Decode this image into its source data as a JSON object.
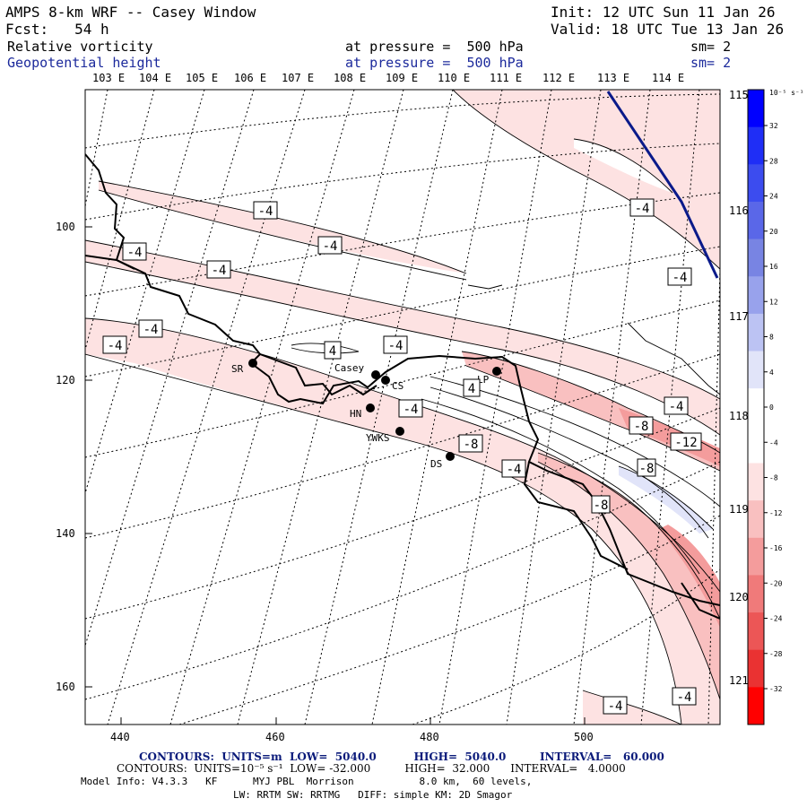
{
  "header": {
    "model": "AMPS 8-km WRF -- Casey Window",
    "init": "Init: 12 UTC Sun 11 Jan 26",
    "fcst": "Fcst:   54 h",
    "valid": "Valid: 18 UTC Tue 13 Jan 26",
    "field1": "Relative vorticity",
    "field1_level": "at pressure =  500 hPa",
    "field1_sm": "sm= 2",
    "field2": "Geopotential height",
    "field2_level": "at pressure =  500 hPa",
    "field2_sm": "sm= 2"
  },
  "map": {
    "lon_labels_top": [
      "103 E",
      "104 E",
      "105 E",
      "106 E",
      "107 E",
      "108 E",
      "109 E",
      "110 E",
      "111 E",
      "112 E",
      "113 E",
      "114 E"
    ],
    "lon_labels_right": [
      "115 E",
      "116 E",
      "117 E",
      "118 E",
      "119 E",
      "120 E",
      "121 E"
    ],
    "x_ticks": [
      "440",
      "460",
      "480",
      "500"
    ],
    "y_ticks": [
      "100",
      "120",
      "140",
      "160"
    ],
    "stations": [
      {
        "code": "SR"
      },
      {
        "code": "Casey"
      },
      {
        "code": "CS"
      },
      {
        "code": "LP"
      },
      {
        "code": "HN"
      },
      {
        "code": "YWKS"
      },
      {
        "code": "DS"
      }
    ],
    "contour_labels": [
      "-4",
      "-4",
      "-4",
      "-4",
      "-4",
      "-4",
      "4",
      "-4",
      "4",
      "-4",
      "-4",
      "-4",
      "-8",
      "-4",
      "-4",
      "-8",
      "-12",
      "-8",
      "-8",
      "-4",
      "-4"
    ]
  },
  "colorbar": {
    "unit": "10⁻⁵ s⁻¹",
    "levels": [
      "32",
      "28",
      "24",
      "20",
      "16",
      "12",
      "8",
      "4",
      "0",
      "-4",
      "-8",
      "-12",
      "-16",
      "-20",
      "-24",
      "-28",
      "-32"
    ],
    "colors": [
      "#0000ff",
      "#1f2ef6",
      "#3c4cef",
      "#5a67e8",
      "#7884e3",
      "#98a2ec",
      "#bcc3f3",
      "#e1e4f9",
      "#ffffff",
      "#ffffff",
      "#fde2e2",
      "#f9c0c0",
      "#f49c9c",
      "#f07a7a",
      "#ec5656",
      "#ea3232",
      "#ff0000"
    ]
  },
  "footer": {
    "contours1": "CONTOURS:  UNITS=m  LOW=  5040.0          HIGH=  5040.0         INTERVAL=   60.000",
    "contours2_units": "CONTOURS:  UNITS=10⁻⁵ s⁻¹  LOW= -32.000          HIGH=  32.000      INTERVAL=   4.0000",
    "model_info": "Model Info: V4.3.3   KF      MYJ PBL  Morrison           8.0 km,  60 levels,",
    "physics": "LW: RRTM SW: RRTMG   DIFF: simple KM: 2D Smagor"
  }
}
